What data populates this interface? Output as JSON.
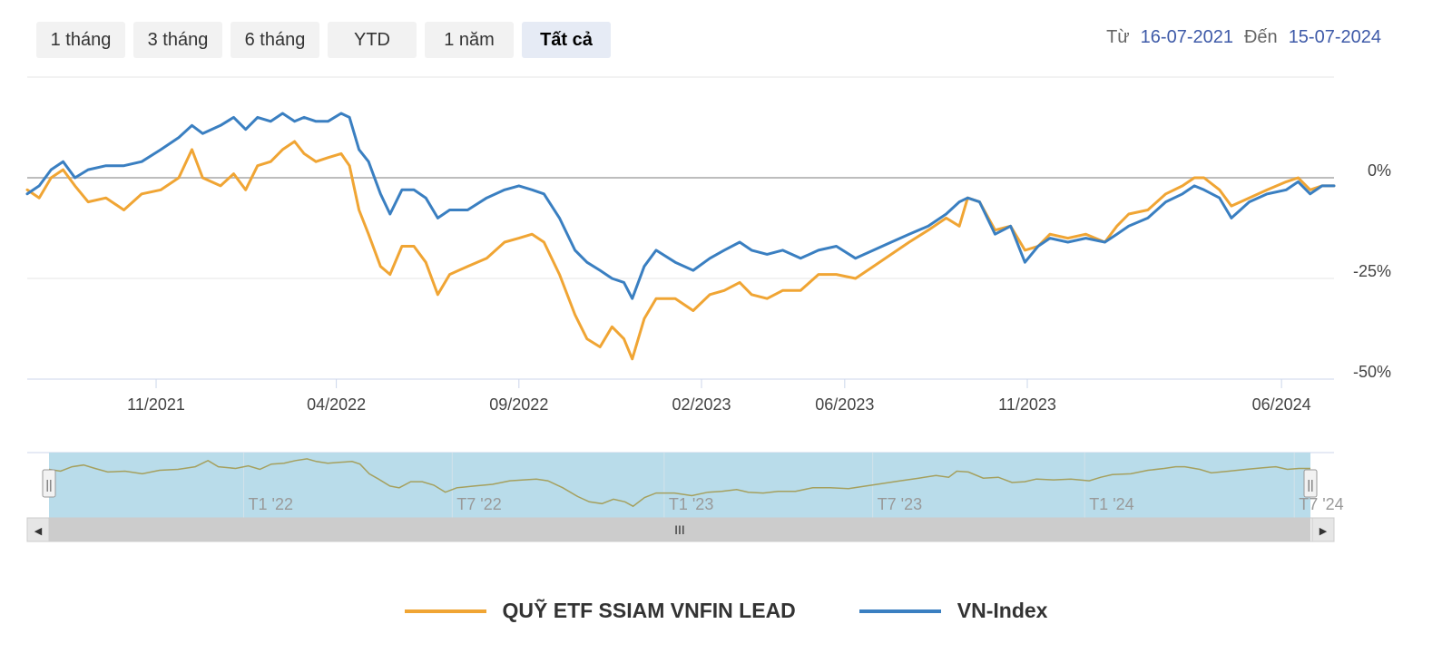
{
  "range_buttons": [
    {
      "label": "1 tháng",
      "active": false
    },
    {
      "label": "3 tháng",
      "active": false
    },
    {
      "label": "6 tháng",
      "active": false
    },
    {
      "label": "YTD",
      "active": false
    },
    {
      "label": "1 năm",
      "active": false
    },
    {
      "label": "Tất cả",
      "active": true
    }
  ],
  "date_range": {
    "from_label": "Từ",
    "from_value": "16-07-2021",
    "to_label": "Đến",
    "to_value": "15-07-2024"
  },
  "navigator": {
    "tick_labels": [
      "T1 '22",
      "T7 '22",
      "T1 '23",
      "T7 '23",
      "T1 '24",
      "T7 '24"
    ],
    "left_arrow": "◀",
    "right_arrow": "▶",
    "grip": "III",
    "handle_grip": "||"
  },
  "chart_data": {
    "type": "line",
    "title": "",
    "xlabel": "",
    "ylabel": "",
    "x_range": [
      "2021-07-16",
      "2024-07-15"
    ],
    "ylim": [
      -50,
      25
    ],
    "y_ticks": [
      0,
      -25,
      -50
    ],
    "y_tick_labels": [
      "0%",
      "-25%",
      "-50%"
    ],
    "x_ticks": [
      "2021-11-01",
      "2022-04-01",
      "2022-09-01",
      "2023-02-01",
      "2023-06-01",
      "2023-11-01",
      "2024-06-01"
    ],
    "x_tick_labels": [
      "11/2021",
      "04/2022",
      "09/2022",
      "02/2023",
      "06/2023",
      "11/2023",
      "06/2024"
    ],
    "legend_position": "bottom",
    "series": [
      {
        "name": "QUỸ ETF SSIAM VNFIN LEAD",
        "color": "#f0a534",
        "points": [
          [
            "2021-07-16",
            -3
          ],
          [
            "2021-07-26",
            -5
          ],
          [
            "2021-08-05",
            0
          ],
          [
            "2021-08-15",
            2
          ],
          [
            "2021-08-25",
            -2
          ],
          [
            "2021-09-05",
            -6
          ],
          [
            "2021-09-20",
            -5
          ],
          [
            "2021-10-05",
            -8
          ],
          [
            "2021-10-20",
            -4
          ],
          [
            "2021-11-05",
            -3
          ],
          [
            "2021-11-20",
            0
          ],
          [
            "2021-12-01",
            7
          ],
          [
            "2021-12-10",
            0
          ],
          [
            "2021-12-25",
            -2
          ],
          [
            "2022-01-05",
            1
          ],
          [
            "2022-01-15",
            -3
          ],
          [
            "2022-01-25",
            3
          ],
          [
            "2022-02-05",
            4
          ],
          [
            "2022-02-15",
            7
          ],
          [
            "2022-02-25",
            9
          ],
          [
            "2022-03-05",
            6
          ],
          [
            "2022-03-15",
            4
          ],
          [
            "2022-03-25",
            5
          ],
          [
            "2022-04-05",
            6
          ],
          [
            "2022-04-12",
            3
          ],
          [
            "2022-04-20",
            -8
          ],
          [
            "2022-04-28",
            -14
          ],
          [
            "2022-05-08",
            -22
          ],
          [
            "2022-05-16",
            -24
          ],
          [
            "2022-05-26",
            -17
          ],
          [
            "2022-06-05",
            -17
          ],
          [
            "2022-06-15",
            -21
          ],
          [
            "2022-06-25",
            -29
          ],
          [
            "2022-07-05",
            -24
          ],
          [
            "2022-07-20",
            -22
          ],
          [
            "2022-08-05",
            -20
          ],
          [
            "2022-08-20",
            -16
          ],
          [
            "2022-09-01",
            -15
          ],
          [
            "2022-09-12",
            -14
          ],
          [
            "2022-09-22",
            -16
          ],
          [
            "2022-10-05",
            -24
          ],
          [
            "2022-10-18",
            -34
          ],
          [
            "2022-10-28",
            -40
          ],
          [
            "2022-11-08",
            -42
          ],
          [
            "2022-11-18",
            -37
          ],
          [
            "2022-11-28",
            -40
          ],
          [
            "2022-12-05",
            -45
          ],
          [
            "2022-12-15",
            -35
          ],
          [
            "2022-12-25",
            -30
          ],
          [
            "2023-01-10",
            -30
          ],
          [
            "2023-01-25",
            -33
          ],
          [
            "2023-02-08",
            -29
          ],
          [
            "2023-02-20",
            -28
          ],
          [
            "2023-03-05",
            -26
          ],
          [
            "2023-03-15",
            -29
          ],
          [
            "2023-03-28",
            -30
          ],
          [
            "2023-04-10",
            -28
          ],
          [
            "2023-04-25",
            -28
          ],
          [
            "2023-05-10",
            -24
          ],
          [
            "2023-05-25",
            -24
          ],
          [
            "2023-06-10",
            -25
          ],
          [
            "2023-06-25",
            -22
          ],
          [
            "2023-07-10",
            -19
          ],
          [
            "2023-07-25",
            -16
          ],
          [
            "2023-08-10",
            -13
          ],
          [
            "2023-08-25",
            -10
          ],
          [
            "2023-09-05",
            -12
          ],
          [
            "2023-09-12",
            -5
          ],
          [
            "2023-09-22",
            -6
          ],
          [
            "2023-10-05",
            -13
          ],
          [
            "2023-10-18",
            -12
          ],
          [
            "2023-10-30",
            -18
          ],
          [
            "2023-11-10",
            -17
          ],
          [
            "2023-11-20",
            -14
          ],
          [
            "2023-12-05",
            -15
          ],
          [
            "2023-12-20",
            -14
          ],
          [
            "2024-01-05",
            -16
          ],
          [
            "2024-01-15",
            -12
          ],
          [
            "2024-01-25",
            -9
          ],
          [
            "2024-02-10",
            -8
          ],
          [
            "2024-02-25",
            -4
          ],
          [
            "2024-03-10",
            -2
          ],
          [
            "2024-03-20",
            0
          ],
          [
            "2024-03-28",
            0
          ],
          [
            "2024-04-10",
            -3
          ],
          [
            "2024-04-20",
            -7
          ],
          [
            "2024-05-05",
            -5
          ],
          [
            "2024-05-20",
            -3
          ],
          [
            "2024-06-05",
            -1
          ],
          [
            "2024-06-15",
            0
          ],
          [
            "2024-06-25",
            -3
          ],
          [
            "2024-07-05",
            -2
          ],
          [
            "2024-07-15",
            -2
          ]
        ]
      },
      {
        "name": "VN-Index",
        "color": "#3a7fc1",
        "points": [
          [
            "2021-07-16",
            -4
          ],
          [
            "2021-07-26",
            -2
          ],
          [
            "2021-08-05",
            2
          ],
          [
            "2021-08-15",
            4
          ],
          [
            "2021-08-25",
            0
          ],
          [
            "2021-09-05",
            2
          ],
          [
            "2021-09-20",
            3
          ],
          [
            "2021-10-05",
            3
          ],
          [
            "2021-10-20",
            4
          ],
          [
            "2021-11-05",
            7
          ],
          [
            "2021-11-20",
            10
          ],
          [
            "2021-12-01",
            13
          ],
          [
            "2021-12-10",
            11
          ],
          [
            "2021-12-25",
            13
          ],
          [
            "2022-01-05",
            15
          ],
          [
            "2022-01-15",
            12
          ],
          [
            "2022-01-25",
            15
          ],
          [
            "2022-02-05",
            14
          ],
          [
            "2022-02-15",
            16
          ],
          [
            "2022-02-25",
            14
          ],
          [
            "2022-03-05",
            15
          ],
          [
            "2022-03-15",
            14
          ],
          [
            "2022-03-25",
            14
          ],
          [
            "2022-04-05",
            16
          ],
          [
            "2022-04-12",
            15
          ],
          [
            "2022-04-20",
            7
          ],
          [
            "2022-04-28",
            4
          ],
          [
            "2022-05-08",
            -4
          ],
          [
            "2022-05-16",
            -9
          ],
          [
            "2022-05-26",
            -3
          ],
          [
            "2022-06-05",
            -3
          ],
          [
            "2022-06-15",
            -5
          ],
          [
            "2022-06-25",
            -10
          ],
          [
            "2022-07-05",
            -8
          ],
          [
            "2022-07-20",
            -8
          ],
          [
            "2022-08-05",
            -5
          ],
          [
            "2022-08-20",
            -3
          ],
          [
            "2022-09-01",
            -2
          ],
          [
            "2022-09-12",
            -3
          ],
          [
            "2022-09-22",
            -4
          ],
          [
            "2022-10-05",
            -10
          ],
          [
            "2022-10-18",
            -18
          ],
          [
            "2022-10-28",
            -21
          ],
          [
            "2022-11-08",
            -23
          ],
          [
            "2022-11-18",
            -25
          ],
          [
            "2022-11-28",
            -26
          ],
          [
            "2022-12-05",
            -30
          ],
          [
            "2022-12-15",
            -22
          ],
          [
            "2022-12-25",
            -18
          ],
          [
            "2023-01-10",
            -21
          ],
          [
            "2023-01-25",
            -23
          ],
          [
            "2023-02-08",
            -20
          ],
          [
            "2023-02-20",
            -18
          ],
          [
            "2023-03-05",
            -16
          ],
          [
            "2023-03-15",
            -18
          ],
          [
            "2023-03-28",
            -19
          ],
          [
            "2023-04-10",
            -18
          ],
          [
            "2023-04-25",
            -20
          ],
          [
            "2023-05-10",
            -18
          ],
          [
            "2023-05-25",
            -17
          ],
          [
            "2023-06-10",
            -20
          ],
          [
            "2023-06-25",
            -18
          ],
          [
            "2023-07-10",
            -16
          ],
          [
            "2023-07-25",
            -14
          ],
          [
            "2023-08-10",
            -12
          ],
          [
            "2023-08-25",
            -9
          ],
          [
            "2023-09-05",
            -6
          ],
          [
            "2023-09-12",
            -5
          ],
          [
            "2023-09-22",
            -6
          ],
          [
            "2023-10-05",
            -14
          ],
          [
            "2023-10-18",
            -12
          ],
          [
            "2023-10-30",
            -21
          ],
          [
            "2023-11-10",
            -17
          ],
          [
            "2023-11-20",
            -15
          ],
          [
            "2023-12-05",
            -16
          ],
          [
            "2023-12-20",
            -15
          ],
          [
            "2024-01-05",
            -16
          ],
          [
            "2024-01-15",
            -14
          ],
          [
            "2024-01-25",
            -12
          ],
          [
            "2024-02-10",
            -10
          ],
          [
            "2024-02-25",
            -6
          ],
          [
            "2024-03-10",
            -4
          ],
          [
            "2024-03-20",
            -2
          ],
          [
            "2024-03-28",
            -3
          ],
          [
            "2024-04-10",
            -5
          ],
          [
            "2024-04-20",
            -10
          ],
          [
            "2024-05-05",
            -6
          ],
          [
            "2024-05-20",
            -4
          ],
          [
            "2024-06-05",
            -3
          ],
          [
            "2024-06-15",
            -1
          ],
          [
            "2024-06-25",
            -4
          ],
          [
            "2024-07-05",
            -2
          ],
          [
            "2024-07-15",
            -2
          ]
        ]
      }
    ]
  }
}
